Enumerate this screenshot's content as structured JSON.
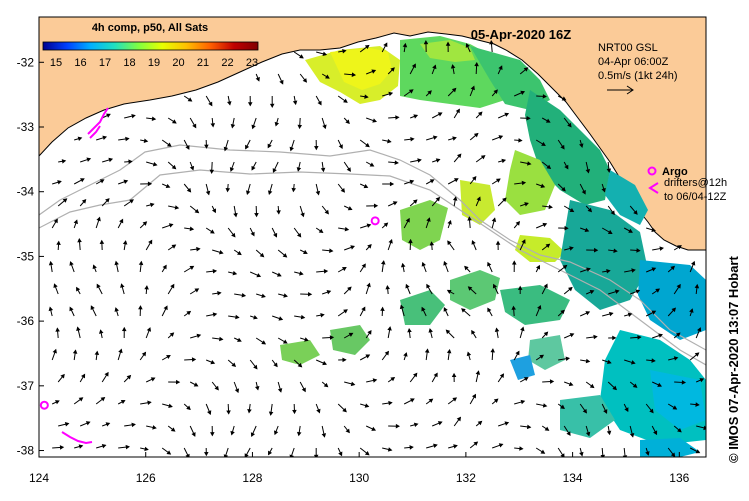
{
  "header": {
    "colorbar_title": "4h comp, p50, All Sats",
    "date_title": "05-Apr-2020 16Z"
  },
  "colorbar": {
    "ticks": [
      "15",
      "16",
      "17",
      "18",
      "19",
      "20",
      "21",
      "22",
      "23"
    ],
    "colors": [
      "#00008f",
      "#0040ff",
      "#00b0ff",
      "#20e0c0",
      "#80ff40",
      "#e8ff00",
      "#ffc000",
      "#ff6000",
      "#c00000",
      "#800000"
    ]
  },
  "current_legend": {
    "line1": "NRT00 GSL",
    "line2": "04-Apr 06:00Z",
    "line3": "0.5m/s (1kt 24h)"
  },
  "argo_legend": {
    "argo_label": "Argo",
    "drifter_line1": "drifters@12h",
    "drifter_line2": "to 06/04-12Z"
  },
  "axes": {
    "x_ticks": [
      "124",
      "126",
      "128",
      "130",
      "132",
      "134",
      "136"
    ],
    "y_ticks": [
      "-32",
      "-33",
      "-34",
      "-35",
      "-36",
      "-37",
      "-38"
    ],
    "lon_range": [
      124,
      136.5
    ],
    "lat_range": [
      -38.1,
      -31.3
    ]
  },
  "credit": {
    "text": "© IMOS 07-Apr-2020 13:07 Hobart"
  },
  "colors": {
    "land": "#fbcb98",
    "ocean": "#ffffff",
    "drifter": "#ff00ff",
    "bathymetry": "#b0b0b0",
    "arrow": "#000000",
    "frame": "#000000"
  },
  "drifters": [
    {
      "lon": 124.1,
      "lat": -37.3
    },
    {
      "lon": 130.3,
      "lat": -34.45
    }
  ]
}
